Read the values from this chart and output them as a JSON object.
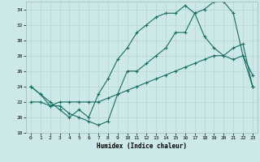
{
  "xlabel": "Humidex (Indice chaleur)",
  "bg_color": "#cce8e8",
  "grid_color": "#b8d4d4",
  "line_color": "#1a6e60",
  "xlim": [
    -0.5,
    23.5
  ],
  "ylim": [
    18,
    35
  ],
  "xticks": [
    0,
    1,
    2,
    3,
    4,
    5,
    6,
    7,
    8,
    9,
    10,
    11,
    12,
    13,
    14,
    15,
    16,
    17,
    18,
    19,
    20,
    21,
    22,
    23
  ],
  "yticks": [
    18,
    20,
    22,
    24,
    26,
    28,
    30,
    32,
    34
  ],
  "line1_x": [
    0,
    1,
    2,
    3,
    4,
    5,
    6,
    7,
    8,
    9,
    10,
    11,
    12,
    13,
    14,
    15,
    16,
    17,
    18,
    19,
    20,
    21,
    22,
    23
  ],
  "line1_y": [
    24,
    23,
    21.5,
    21.5,
    20.5,
    20,
    19.5,
    19,
    19.5,
    23,
    26,
    26,
    27,
    28,
    29,
    31,
    31,
    33.5,
    34,
    35,
    35,
    33.5,
    28,
    25.5
  ],
  "line2_x": [
    0,
    1,
    2,
    3,
    4,
    5,
    6,
    7,
    8,
    9,
    10,
    11,
    12,
    13,
    14,
    15,
    16,
    17,
    18,
    19,
    20,
    21,
    22,
    23
  ],
  "line2_y": [
    24,
    23,
    22,
    21,
    20,
    21,
    20,
    23,
    25,
    27.5,
    29,
    31,
    32,
    33,
    33.5,
    33.5,
    34.5,
    33.5,
    30.5,
    29,
    28,
    27.5,
    28,
    24
  ],
  "line3_x": [
    0,
    1,
    2,
    3,
    4,
    5,
    6,
    7,
    8,
    9,
    10,
    11,
    12,
    13,
    14,
    15,
    16,
    17,
    18,
    19,
    20,
    21,
    22,
    23
  ],
  "line3_y": [
    22,
    22,
    21.5,
    22,
    22,
    22,
    22,
    22,
    22.5,
    23,
    23.5,
    24,
    24.5,
    25,
    25.5,
    26,
    26.5,
    27,
    27.5,
    28,
    28,
    29,
    29.5,
    24
  ]
}
